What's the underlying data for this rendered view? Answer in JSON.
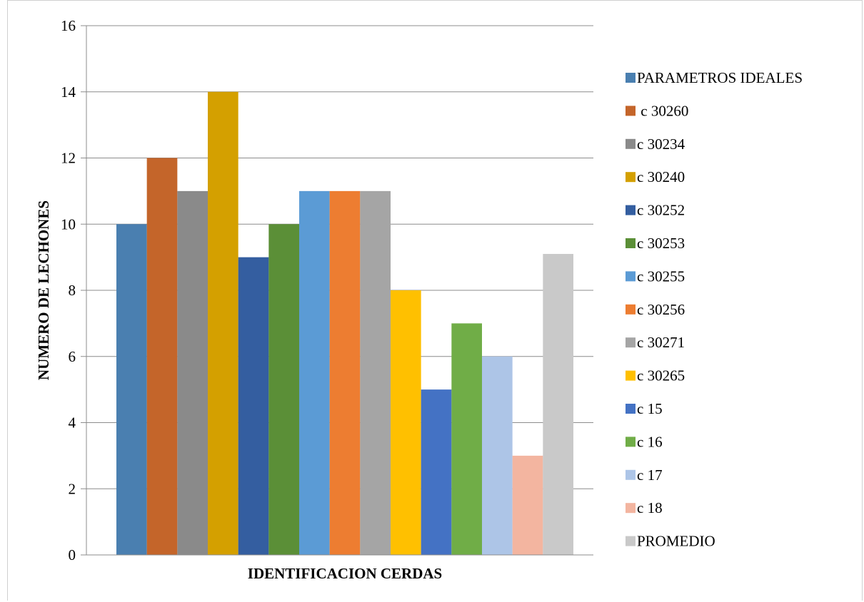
{
  "chart_data": {
    "type": "bar",
    "title": "",
    "xlabel": "IDENTIFICACION CERDAS",
    "ylabel": "NUMERO DE LECHONES",
    "ylim": [
      0,
      16
    ],
    "yticks": [
      0,
      2,
      4,
      6,
      8,
      10,
      12,
      14,
      16
    ],
    "grid": true,
    "legend_position": "right",
    "series": [
      {
        "name": "PARAMETROS IDEALES",
        "value": 10,
        "color": "#4a7fb0"
      },
      {
        "name": " c 30260",
        "value": 12,
        "color": "#c4652a"
      },
      {
        "name": "c 30234",
        "value": 11,
        "color": "#8a8a8a"
      },
      {
        "name": "c 30240",
        "value": 14,
        "color": "#d4a000"
      },
      {
        "name": "c 30252",
        "value": 9,
        "color": "#345ea0"
      },
      {
        "name": "c 30253",
        "value": 10,
        "color": "#5b8f37"
      },
      {
        "name": "c 30255",
        "value": 11,
        "color": "#5b9bd5"
      },
      {
        "name": "c 30256",
        "value": 11,
        "color": "#ed7d31"
      },
      {
        "name": "c 30271",
        "value": 11,
        "color": "#a5a5a5"
      },
      {
        "name": "c 30265",
        "value": 8,
        "color": "#ffc000"
      },
      {
        "name": "c 15",
        "value": 5,
        "color": "#4472c4"
      },
      {
        "name": "c 16",
        "value": 7,
        "color": "#70ad47"
      },
      {
        "name": "c 17",
        "value": 6,
        "color": "#adc5e7"
      },
      {
        "name": "c 18",
        "value": 3,
        "color": "#f3b5a0"
      },
      {
        "name": "PROMEDIO",
        "value": 9.1,
        "color": "#c9c9c9"
      }
    ]
  }
}
